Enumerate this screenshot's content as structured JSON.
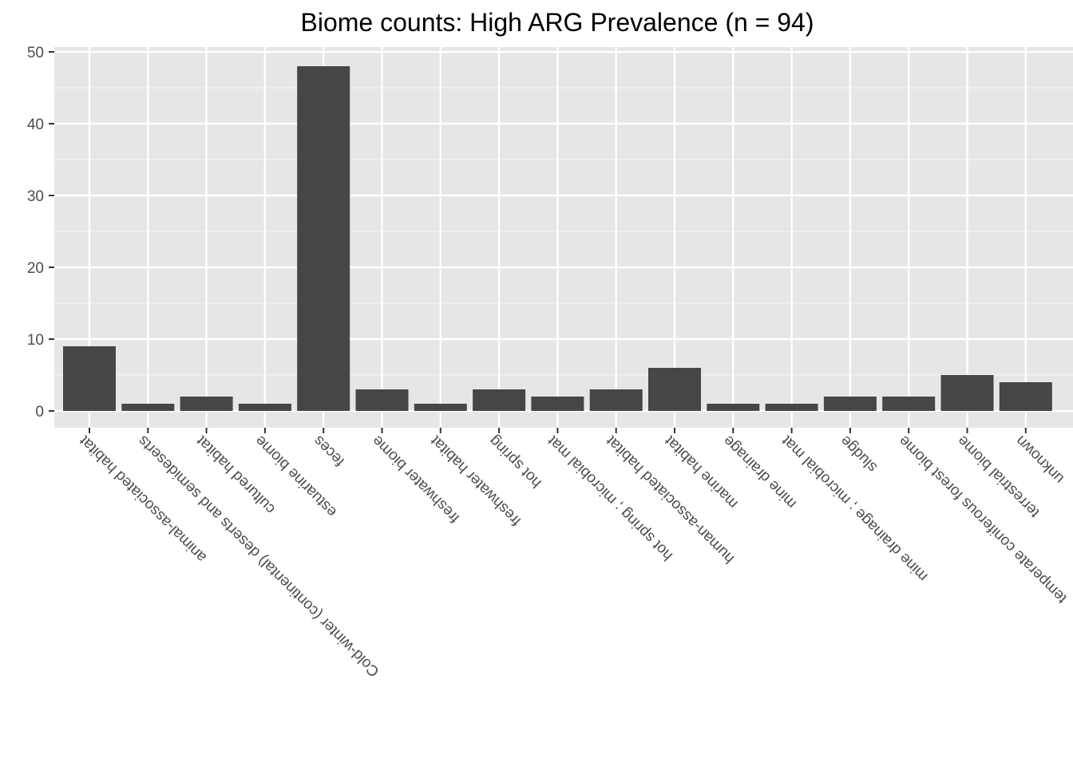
{
  "chart_data": {
    "type": "bar",
    "title": "Biome counts: High ARG Prevalence (n = 94)",
    "xlabel": "",
    "ylabel": "",
    "ylim": [
      0,
      50
    ],
    "yticks": [
      0,
      10,
      20,
      30,
      40,
      50
    ],
    "grid": true,
    "bar_color": "#464646",
    "panel_color": "#e6e6e6",
    "categories": [
      "animal-associated habitat",
      "Cold-winter (continental) deserts and semideserts",
      "cultured habitat",
      "estuarine biome",
      "feces",
      "freshwater biome",
      "freshwater habitat",
      "hot spring",
      "hot spring ; microbial mat",
      "human-associated habitat",
      "marine habitat",
      "mine drainage",
      "mine drainage ; microbial mat",
      "sludge",
      "temperate coniferous forest biome",
      "terrestrial biome",
      "unknown"
    ],
    "values": [
      9,
      1,
      2,
      1,
      48,
      3,
      1,
      3,
      2,
      3,
      6,
      1,
      1,
      2,
      2,
      5,
      4
    ]
  }
}
